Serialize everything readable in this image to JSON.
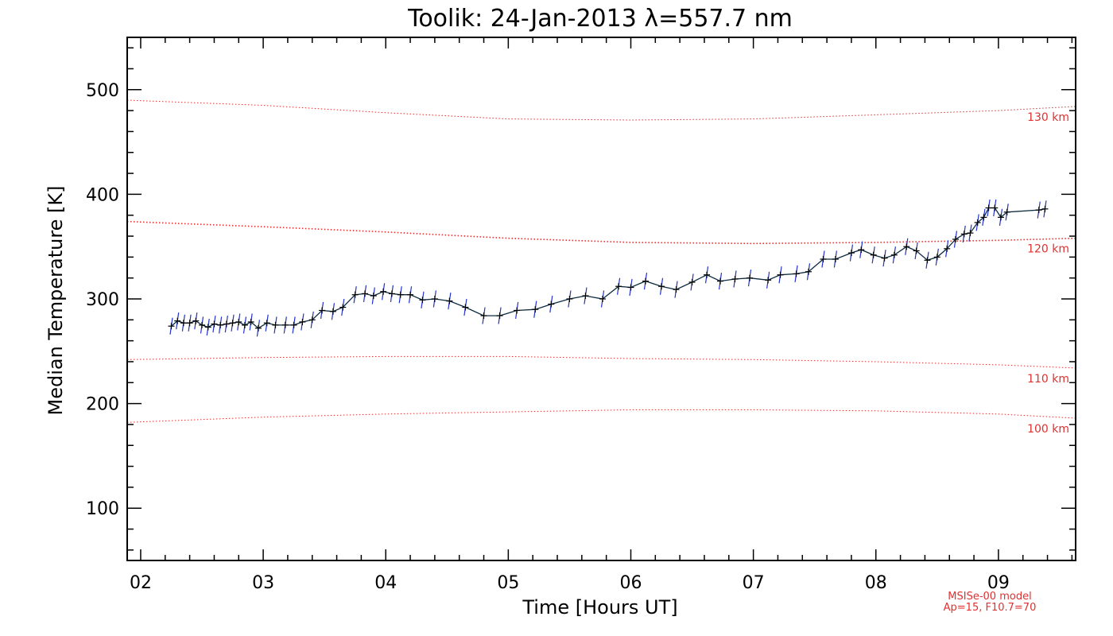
{
  "chart_data": {
    "type": "line",
    "title": "Toolik: 24-Jan-2013 λ=557.7 nm",
    "xlabel": "Time [Hours UT]",
    "ylabel": "Median Temperature [K]",
    "xlim": [
      1.89,
      9.63
    ],
    "ylim": [
      50,
      550
    ],
    "x_ticks": [
      2,
      3,
      4,
      5,
      6,
      7,
      8,
      9
    ],
    "x_tick_labels": [
      "02",
      "03",
      "04",
      "05",
      "06",
      "07",
      "08",
      "09"
    ],
    "y_ticks": [
      100,
      200,
      300,
      400,
      500
    ],
    "y_tick_labels": [
      "100",
      "200",
      "300",
      "400",
      "500"
    ],
    "grid": false,
    "series": [
      {
        "color": "#0d2b40",
        "errorbar_color": "#2233cc",
        "error": 8,
        "points": [
          [
            2.25,
            274
          ],
          [
            2.3,
            279
          ],
          [
            2.35,
            277
          ],
          [
            2.4,
            277
          ],
          [
            2.45,
            279
          ],
          [
            2.5,
            275
          ],
          [
            2.55,
            273
          ],
          [
            2.6,
            276
          ],
          [
            2.65,
            275
          ],
          [
            2.7,
            276
          ],
          [
            2.75,
            277
          ],
          [
            2.8,
            278
          ],
          [
            2.85,
            275
          ],
          [
            2.9,
            278
          ],
          [
            2.96,
            272
          ],
          [
            3.03,
            277
          ],
          [
            3.1,
            275
          ],
          [
            3.18,
            275
          ],
          [
            3.25,
            275
          ],
          [
            3.32,
            278
          ],
          [
            3.4,
            280
          ],
          [
            3.48,
            289
          ],
          [
            3.57,
            288
          ],
          [
            3.65,
            292
          ],
          [
            3.75,
            304
          ],
          [
            3.83,
            305
          ],
          [
            3.9,
            303
          ],
          [
            3.98,
            307
          ],
          [
            4.05,
            305
          ],
          [
            4.12,
            304
          ],
          [
            4.2,
            304
          ],
          [
            4.3,
            299
          ],
          [
            4.4,
            300
          ],
          [
            4.52,
            298
          ],
          [
            4.65,
            292
          ],
          [
            4.8,
            284
          ],
          [
            4.93,
            284
          ],
          [
            5.07,
            289
          ],
          [
            5.22,
            290
          ],
          [
            5.35,
            295
          ],
          [
            5.5,
            300
          ],
          [
            5.63,
            303
          ],
          [
            5.77,
            300
          ],
          [
            5.9,
            312
          ],
          [
            6.0,
            311
          ],
          [
            6.12,
            317
          ],
          [
            6.25,
            312
          ],
          [
            6.37,
            309
          ],
          [
            6.5,
            316
          ],
          [
            6.62,
            323
          ],
          [
            6.73,
            317
          ],
          [
            6.85,
            319
          ],
          [
            6.97,
            320
          ],
          [
            7.12,
            318
          ],
          [
            7.22,
            323
          ],
          [
            7.35,
            324
          ],
          [
            7.45,
            326
          ],
          [
            7.57,
            338
          ],
          [
            7.67,
            338
          ],
          [
            7.8,
            344
          ],
          [
            7.88,
            347
          ],
          [
            7.98,
            342
          ],
          [
            8.07,
            339
          ],
          [
            8.15,
            342
          ],
          [
            8.25,
            350
          ],
          [
            8.33,
            346
          ],
          [
            8.42,
            337
          ],
          [
            8.5,
            340
          ],
          [
            8.58,
            348
          ],
          [
            8.65,
            357
          ],
          [
            8.72,
            362
          ],
          [
            8.77,
            363
          ],
          [
            8.83,
            373
          ],
          [
            8.88,
            378
          ],
          [
            8.92,
            387
          ],
          [
            8.97,
            387
          ],
          [
            9.02,
            378
          ],
          [
            9.07,
            383
          ],
          [
            9.33,
            385
          ],
          [
            9.38,
            386
          ]
        ]
      }
    ],
    "reference_curves": [
      {
        "label": "130 km",
        "color": "#e03030",
        "points": [
          [
            1.89,
            490
          ],
          [
            3.0,
            485
          ],
          [
            4.0,
            478
          ],
          [
            5.0,
            472
          ],
          [
            6.0,
            471
          ],
          [
            7.0,
            472
          ],
          [
            8.0,
            476
          ],
          [
            9.0,
            480
          ],
          [
            9.63,
            484
          ]
        ]
      },
      {
        "label": "120 km",
        "color": "#e03030",
        "points": [
          [
            1.89,
            374
          ],
          [
            3.0,
            369
          ],
          [
            4.0,
            364
          ],
          [
            5.0,
            358
          ],
          [
            6.0,
            354
          ],
          [
            7.0,
            353
          ],
          [
            8.0,
            354
          ],
          [
            9.0,
            356
          ],
          [
            9.63,
            358
          ]
        ]
      },
      {
        "label": "110 km",
        "color": "#e03030",
        "points": [
          [
            1.89,
            242
          ],
          [
            3.0,
            244
          ],
          [
            4.0,
            245
          ],
          [
            5.0,
            245
          ],
          [
            6.0,
            243
          ],
          [
            7.0,
            242
          ],
          [
            8.0,
            240
          ],
          [
            9.0,
            237
          ],
          [
            9.63,
            234
          ]
        ]
      },
      {
        "label": "100 km",
        "color": "#e03030",
        "points": [
          [
            1.89,
            182
          ],
          [
            3.0,
            187
          ],
          [
            4.0,
            190
          ],
          [
            5.0,
            192
          ],
          [
            6.0,
            194
          ],
          [
            7.0,
            194
          ],
          [
            8.0,
            193
          ],
          [
            9.0,
            190
          ],
          [
            9.63,
            186
          ]
        ]
      }
    ],
    "annotations": [
      "MSISe-00 model",
      "Ap=15, F10.7=70"
    ]
  }
}
